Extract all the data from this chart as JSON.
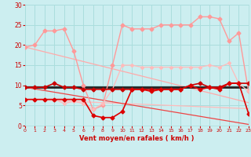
{
  "x": [
    0,
    1,
    2,
    3,
    4,
    5,
    6,
    7,
    8,
    9,
    10,
    11,
    12,
    13,
    14,
    15,
    16,
    17,
    18,
    19,
    20,
    21,
    22,
    23
  ],
  "series": [
    {
      "name": "upper_diagonal",
      "color": "#ffaaaa",
      "linewidth": 0.9,
      "marker": null,
      "markersize": 0,
      "values": [
        19.5,
        18.9,
        18.3,
        17.7,
        17.1,
        16.5,
        15.9,
        15.3,
        14.7,
        14.1,
        13.5,
        12.9,
        12.3,
        11.7,
        11.1,
        10.5,
        9.9,
        9.3,
        8.7,
        8.1,
        7.5,
        6.9,
        6.3,
        5.7
      ]
    },
    {
      "name": "lower_diagonal",
      "color": "#ffbbbb",
      "linewidth": 0.9,
      "marker": null,
      "markersize": 0,
      "values": [
        6.5,
        6.4,
        6.3,
        6.2,
        6.1,
        6.0,
        5.9,
        5.8,
        5.7,
        5.6,
        5.5,
        5.4,
        5.3,
        5.2,
        5.1,
        5.0,
        4.9,
        4.8,
        4.7,
        4.6,
        4.5,
        4.4,
        4.3,
        4.2
      ]
    },
    {
      "name": "max_gust",
      "color": "#ff9999",
      "linewidth": 1.0,
      "marker": "D",
      "markersize": 2.5,
      "values": [
        19.5,
        20,
        23.5,
        23.5,
        24,
        18.5,
        10,
        4,
        5,
        15,
        25,
        24,
        24,
        24,
        25,
        25,
        25,
        25,
        27,
        27,
        26.5,
        21,
        23,
        8.5
      ]
    },
    {
      "name": "mid_gust",
      "color": "#ffbbbb",
      "linewidth": 0.9,
      "marker": "D",
      "markersize": 2.0,
      "values": [
        6.5,
        6.5,
        6.5,
        6.5,
        5.5,
        6.0,
        5.5,
        4.0,
        5.5,
        9.0,
        15.0,
        15.0,
        14.5,
        14.5,
        14.5,
        14.5,
        14.5,
        14.5,
        14.5,
        15.0,
        14.5,
        15.5,
        10.5,
        8.5
      ]
    },
    {
      "name": "black_flat",
      "color": "#222222",
      "linewidth": 2.0,
      "marker": null,
      "markersize": 0,
      "values": [
        9.5,
        9.5,
        9.5,
        9.5,
        9.5,
        9.5,
        9.5,
        9.5,
        9.5,
        9.5,
        9.5,
        9.5,
        9.5,
        9.5,
        9.5,
        9.5,
        9.5,
        9.5,
        9.5,
        9.5,
        9.5,
        9.5,
        9.5,
        9.5
      ]
    },
    {
      "name": "avg_wind",
      "color": "#cc0000",
      "linewidth": 1.2,
      "marker": "D",
      "markersize": 2.5,
      "values": [
        9.5,
        9.5,
        9.5,
        10.5,
        9.5,
        9.5,
        9.0,
        9.0,
        9.0,
        9.0,
        9.0,
        9.0,
        9.0,
        9.0,
        9.0,
        9.0,
        9.0,
        10.0,
        10.5,
        9.5,
        9.5,
        10.5,
        10.5,
        10.5
      ]
    },
    {
      "name": "low_wind",
      "color": "#dd0000",
      "linewidth": 1.2,
      "marker": "D",
      "markersize": 2.5,
      "values": [
        6.5,
        6.5,
        6.5,
        6.5,
        6.5,
        6.5,
        6.5,
        2.5,
        2.0,
        2.0,
        3.5,
        9.0,
        9.0,
        8.5,
        9.0,
        9.0,
        9.0,
        10.0,
        9.0,
        9.5,
        9.0,
        10.5,
        10.5,
        3.0
      ]
    },
    {
      "name": "bottom_trend",
      "color": "#ee4444",
      "linewidth": 0.9,
      "marker": null,
      "markersize": 0,
      "values": [
        9.5,
        9.1,
        8.7,
        8.3,
        7.9,
        7.5,
        7.1,
        6.7,
        6.3,
        5.9,
        5.5,
        5.1,
        4.7,
        4.3,
        3.9,
        3.5,
        3.1,
        2.7,
        2.3,
        1.9,
        1.5,
        1.1,
        0.7,
        0.3
      ]
    }
  ],
  "xlabel": "Vent moyen/en rafales ( km/h )",
  "xlim": [
    0,
    23
  ],
  "ylim": [
    0,
    30
  ],
  "yticks": [
    0,
    5,
    10,
    15,
    20,
    25,
    30
  ],
  "xticks": [
    0,
    1,
    2,
    3,
    4,
    5,
    6,
    7,
    8,
    9,
    10,
    11,
    12,
    13,
    14,
    15,
    16,
    17,
    18,
    19,
    20,
    21,
    22,
    23
  ],
  "bg_color": "#cceef0",
  "grid_color": "#aadddd",
  "tick_color": "#cc0000",
  "label_color": "#cc0000"
}
